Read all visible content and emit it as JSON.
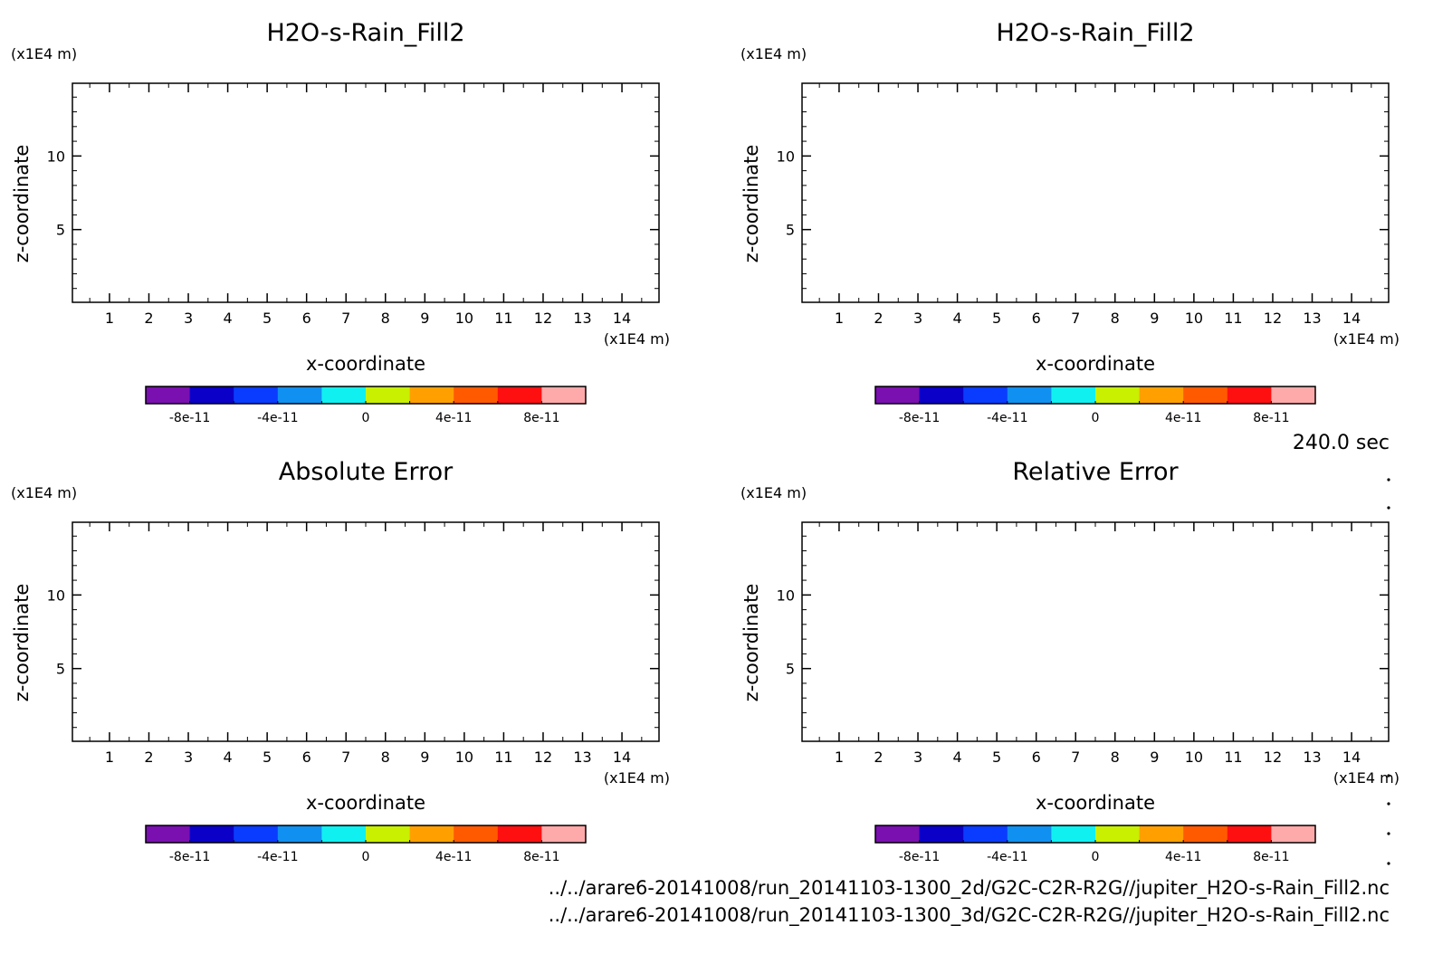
{
  "time_label": "240.0 sec",
  "footer": {
    "lines": [
      "../../arare6-20141008/run_20141103-1300_2d/G2C-C2R-R2G//jupiter_H2O-s-Rain_Fill2.nc",
      "../../arare6-20141008/run_20141103-1300_3d/G2C-C2R-R2G//jupiter_H2O-s-Rain_Fill2.nc"
    ]
  },
  "colors": {
    "axis": "#000000",
    "colorbar": [
      "#7a10b0",
      "#0a00c8",
      "#0a3cff",
      "#1090f0",
      "#10f0f0",
      "#c8f000",
      "#ffa000",
      "#ff5a00",
      "#ff1010",
      "#ffaaaa"
    ]
  },
  "chart_data": [
    {
      "type": "heatmap",
      "title": "H2O-s-Rain_Fill2",
      "xlabel": "x-coordinate",
      "ylabel": "z-coordinate",
      "x_unit": "(x1E4 m)",
      "y_unit": "(x1E4 m)",
      "xlim": [
        0.06,
        14.94
      ],
      "ylim": [
        0.06,
        14.94
      ],
      "x_ticks": [
        "1",
        "2",
        "3",
        "4",
        "5",
        "6",
        "7",
        "8",
        "9",
        "10",
        "11",
        "12",
        "13",
        "14"
      ],
      "y_ticks": [
        "5",
        "10"
      ],
      "values": [],
      "colorbar": {
        "levels": [
          -1e-10,
          -8e-11,
          -6e-11,
          -4e-11,
          -2e-11,
          0,
          2e-11,
          4e-11,
          6e-11,
          8e-11,
          1e-10
        ],
        "tick_labels": [
          "-8e-11",
          "-4e-11",
          "0",
          "4e-11",
          "8e-11"
        ]
      }
    },
    {
      "type": "heatmap",
      "title": "H2O-s-Rain_Fill2",
      "xlabel": "x-coordinate",
      "ylabel": "z-coordinate",
      "x_unit": "(x1E4 m)",
      "y_unit": "(x1E4 m)",
      "xlim": [
        0.06,
        14.94
      ],
      "ylim": [
        0.06,
        14.94
      ],
      "x_ticks": [
        "1",
        "2",
        "3",
        "4",
        "5",
        "6",
        "7",
        "8",
        "9",
        "10",
        "11",
        "12",
        "13",
        "14"
      ],
      "y_ticks": [
        "5",
        "10"
      ],
      "values": [],
      "colorbar": {
        "levels": [
          -1e-10,
          -8e-11,
          -6e-11,
          -4e-11,
          -2e-11,
          0,
          2e-11,
          4e-11,
          6e-11,
          8e-11,
          1e-10
        ],
        "tick_labels": [
          "-8e-11",
          "-4e-11",
          "0",
          "4e-11",
          "8e-11"
        ]
      }
    },
    {
      "type": "heatmap",
      "title": "Absolute Error",
      "xlabel": "x-coordinate",
      "ylabel": "z-coordinate",
      "x_unit": "(x1E4 m)",
      "y_unit": "(x1E4 m)",
      "xlim": [
        0.06,
        14.94
      ],
      "ylim": [
        0.06,
        14.94
      ],
      "x_ticks": [
        "1",
        "2",
        "3",
        "4",
        "5",
        "6",
        "7",
        "8",
        "9",
        "10",
        "11",
        "12",
        "13",
        "14"
      ],
      "y_ticks": [
        "5",
        "10"
      ],
      "values": [],
      "colorbar": {
        "levels": [
          -1e-10,
          -8e-11,
          -6e-11,
          -4e-11,
          -2e-11,
          0,
          2e-11,
          4e-11,
          6e-11,
          8e-11,
          1e-10
        ],
        "tick_labels": [
          "-8e-11",
          "-4e-11",
          "0",
          "4e-11",
          "8e-11"
        ]
      }
    },
    {
      "type": "heatmap",
      "title": "Relative Error",
      "xlabel": "x-coordinate",
      "ylabel": "z-coordinate",
      "x_unit": "(x1E4 m)",
      "y_unit": "(x1E4 m)",
      "xlim": [
        0.06,
        14.94
      ],
      "ylim": [
        0.06,
        14.94
      ],
      "x_ticks": [
        "1",
        "2",
        "3",
        "4",
        "5",
        "6",
        "7",
        "8",
        "9",
        "10",
        "11",
        "12",
        "13",
        "14"
      ],
      "y_ticks": [
        "5",
        "10"
      ],
      "values": [],
      "colorbar": {
        "levels": [
          -1e-10,
          -8e-11,
          -6e-11,
          -4e-11,
          -2e-11,
          0,
          2e-11,
          4e-11,
          6e-11,
          8e-11,
          1e-10
        ],
        "tick_labels": [
          "-8e-11",
          "-4e-11",
          "0",
          "4e-11",
          "8e-11"
        ]
      }
    }
  ]
}
